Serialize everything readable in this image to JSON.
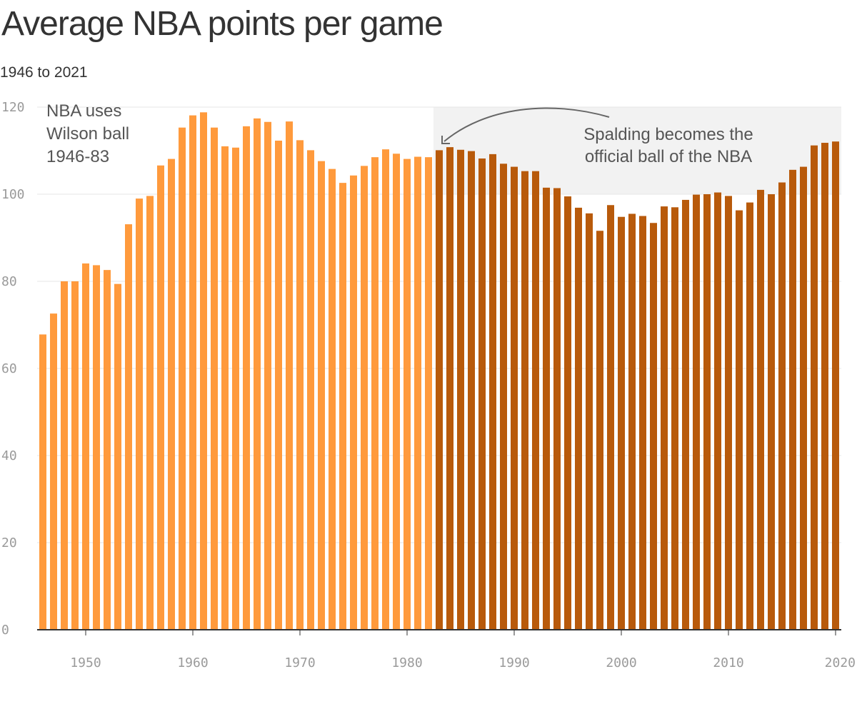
{
  "chart_data": {
    "type": "bar",
    "title": "Average NBA points per game",
    "subtitle": "1946 to 2021",
    "xlabel": "",
    "ylabel": "",
    "ylim": [
      0,
      120
    ],
    "xlim": [
      1946,
      2021
    ],
    "yticks": [
      0,
      20,
      40,
      60,
      80,
      100,
      120
    ],
    "xticks": [
      1950,
      1960,
      1970,
      1980,
      1990,
      2000,
      2010,
      2020
    ],
    "grid": true,
    "colors": {
      "wilson": "#ff9a3c",
      "spalding": "#b85a0b",
      "highlight": "#f2f2f2",
      "grid": "#e6e6e6",
      "axis": "#333333",
      "arrow": "#666666"
    },
    "series": [
      {
        "name": "Wilson ball",
        "start_year": 1946,
        "values": [
          67.8,
          72.6,
          80.0,
          80.0,
          84.1,
          83.7,
          82.6,
          79.4,
          93.1,
          99.0,
          99.6,
          106.6,
          108.1,
          115.3,
          118.1,
          118.8,
          115.3,
          111.0,
          110.7,
          115.6,
          117.4,
          116.6,
          112.3,
          116.7,
          112.4,
          110.1,
          107.6,
          105.8,
          102.6,
          104.3,
          106.5,
          108.5,
          110.3,
          109.3,
          108.1,
          108.6,
          108.5
        ]
      },
      {
        "name": "Spalding ball",
        "start_year": 1983,
        "values": [
          110.1,
          110.8,
          110.2,
          109.9,
          108.2,
          109.2,
          107.0,
          106.3,
          105.3,
          105.3,
          101.5,
          101.4,
          99.5,
          96.9,
          95.6,
          91.6,
          97.5,
          94.8,
          95.5,
          95.0,
          93.4,
          97.2,
          97.0,
          98.7,
          99.9,
          100.0,
          100.4,
          99.6,
          96.3,
          98.1,
          101.0,
          100.0,
          102.7,
          105.6,
          106.3,
          111.2,
          111.8,
          112.1
        ]
      }
    ],
    "annotations": {
      "wilson": [
        "NBA uses",
        "Wilson ball",
        "1946-83"
      ],
      "spalding": [
        "Spalding becomes the",
        "official ball of the NBA"
      ]
    }
  }
}
